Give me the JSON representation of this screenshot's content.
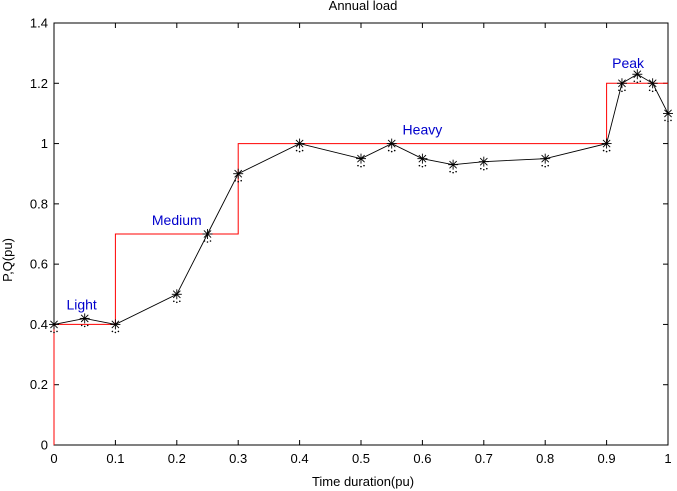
{
  "chart_data": {
    "type": "line",
    "title": "Annual load",
    "xlabel": "Time duration(pu)",
    "ylabel": "P,Q(pu)",
    "xlim": [
      0,
      1
    ],
    "ylim": [
      0,
      1.4
    ],
    "xticks": [
      "0",
      "0.1",
      "0.2",
      "0.3",
      "0.4",
      "0.5",
      "0.6",
      "0.7",
      "0.8",
      "0.9",
      "1"
    ],
    "yticks": [
      "0",
      "0.2",
      "0.4",
      "0.6",
      "0.8",
      "1",
      "1.2",
      "1.4"
    ],
    "grid": false,
    "series": [
      {
        "kind": "line-star-markers",
        "color": "#000000",
        "x": [
          0,
          0.05,
          0.1,
          0.2,
          0.25,
          0.3,
          0.4,
          0.5,
          0.55,
          0.6,
          0.65,
          0.7,
          0.8,
          0.9,
          0.925,
          0.95,
          0.975,
          1.0
        ],
        "y": [
          0.4,
          0.42,
          0.4,
          0.5,
          0.7,
          0.9,
          1.0,
          0.95,
          1.0,
          0.95,
          0.93,
          0.94,
          0.95,
          1.0,
          1.2,
          1.23,
          1.2,
          1.1
        ]
      },
      {
        "kind": "step",
        "color": "#ff0000",
        "x": [
          0,
          0,
          0.1,
          0.1,
          0.3,
          0.3,
          0.9,
          0.9,
          1.0
        ],
        "y": [
          0,
          0.4,
          0.4,
          0.7,
          0.7,
          1.0,
          1.0,
          1.2,
          1.2
        ]
      }
    ],
    "annotations": [
      {
        "text": "Light",
        "x": 0.045,
        "y": 0.45,
        "color": "#0000cc"
      },
      {
        "text": "Medium",
        "x": 0.2,
        "y": 0.73,
        "color": "#0000cc"
      },
      {
        "text": "Heavy",
        "x": 0.6,
        "y": 1.03,
        "color": "#0000cc"
      },
      {
        "text": "Peak",
        "x": 0.935,
        "y": 1.25,
        "color": "#0000cc"
      }
    ]
  }
}
